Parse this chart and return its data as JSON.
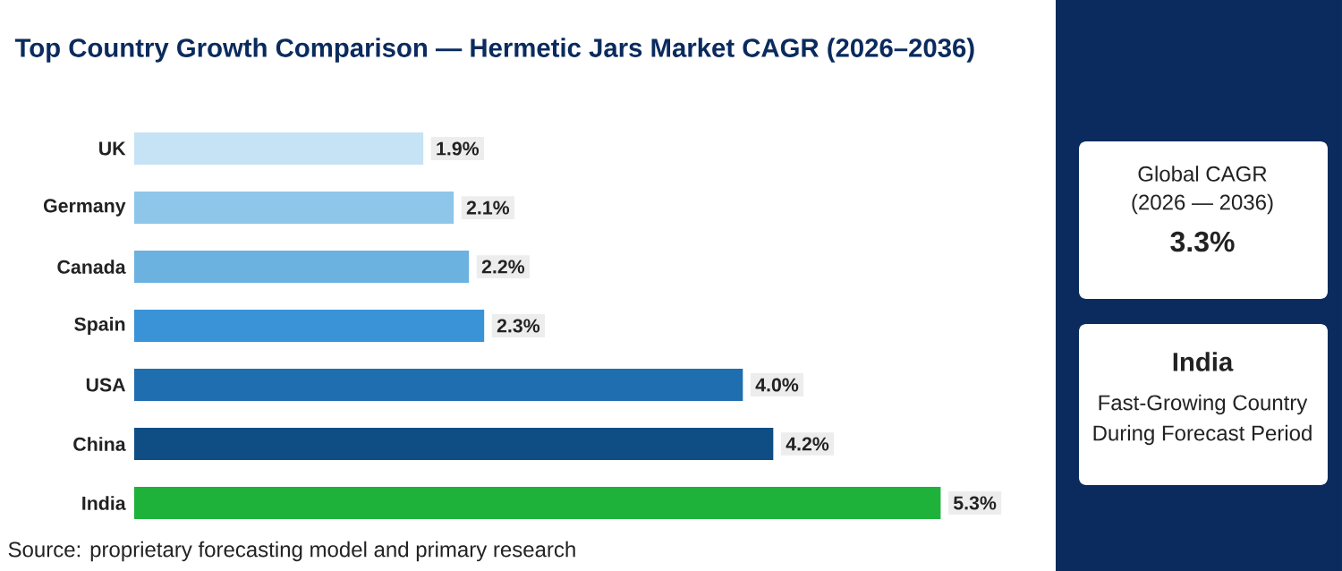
{
  "chart_data": {
    "type": "bar",
    "orientation": "horizontal",
    "title": "Top Country Growth Comparison — Hermetic Jars Market CAGR (2026–2036)",
    "categories": [
      "UK",
      "Germany",
      "Canada",
      "Spain",
      "USA",
      "China",
      "India"
    ],
    "values": [
      1.9,
      2.1,
      2.2,
      2.3,
      4.0,
      4.2,
      5.3
    ],
    "value_labels": [
      "1.9%",
      "2.1%",
      "2.2%",
      "2.3%",
      "4.0%",
      "4.2%",
      "5.3%"
    ],
    "colors": [
      "#c6e3f5",
      "#8ec6ea",
      "#6cb2e0",
      "#3a93d6",
      "#1f6eb0",
      "#0f4d85",
      "#1fb23a"
    ],
    "tick_labels": "y",
    "annotations": [
      "Source: proprietary forecasting model and primary research",
      "Global CAGR",
      "(2026 — 2036)",
      "3.3%",
      "India",
      "Fast-Growing Country",
      "During Forecast Period"
    ]
  }
}
